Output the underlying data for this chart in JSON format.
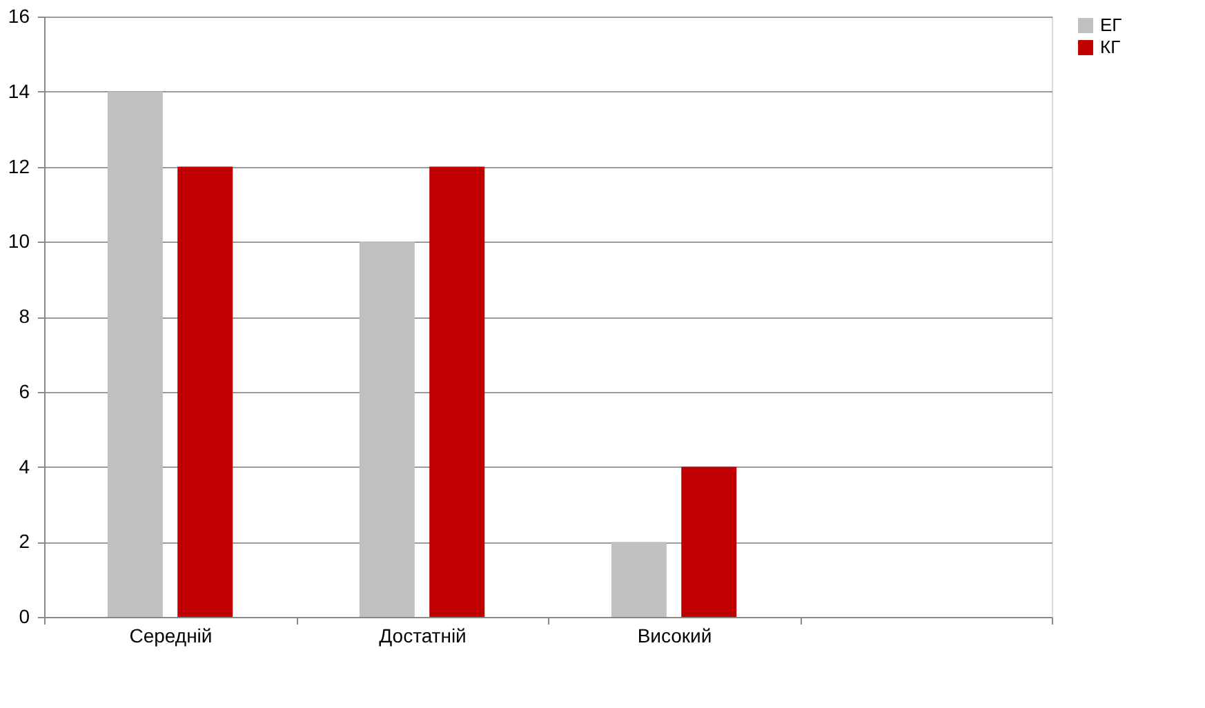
{
  "chart_data": {
    "type": "bar",
    "categories": [
      "Середній",
      "Достатній",
      "Високий",
      null
    ],
    "series": [
      {
        "name": "ЕГ",
        "color": "#c0c0c0",
        "values": [
          14,
          10,
          2,
          null
        ]
      },
      {
        "name": "КГ",
        "color": "#c00000",
        "values": [
          12,
          12,
          4,
          null
        ]
      }
    ],
    "ylim": [
      0,
      16
    ],
    "yticks": [
      0,
      2,
      4,
      6,
      8,
      10,
      12,
      14,
      16
    ],
    "grid": "y",
    "legend": "right"
  }
}
